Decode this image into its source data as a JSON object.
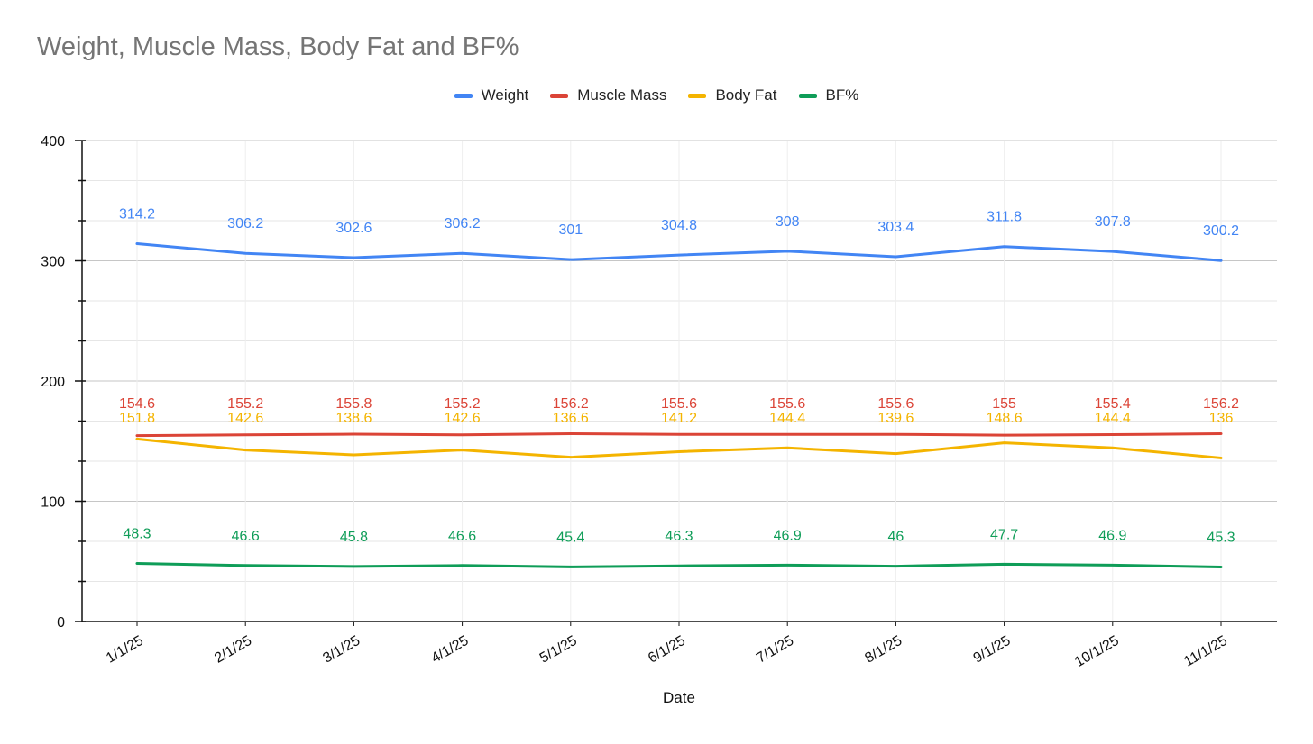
{
  "chart_data": {
    "type": "line",
    "title": "Weight, Muscle Mass, Body Fat and BF%",
    "xlabel": "Date",
    "ylabel": "",
    "ylim": [
      0,
      400
    ],
    "yticks": [
      "0",
      "100",
      "200",
      "300",
      "400"
    ],
    "grid": true,
    "legend_position": "top-center",
    "categories": [
      "1/1/25",
      "2/1/25",
      "3/1/25",
      "4/1/25",
      "5/1/25",
      "6/1/25",
      "7/1/25",
      "8/1/25",
      "9/1/25",
      "10/1/25",
      "11/1/25"
    ],
    "series": [
      {
        "name": "Weight",
        "color": "#4285f4",
        "values": [
          314.2,
          306.2,
          302.6,
          306.2,
          301,
          304.8,
          308,
          303.4,
          311.8,
          307.8,
          300.2
        ],
        "labels": [
          "314.2",
          "306.2",
          "302.6",
          "306.2",
          "301",
          "304.8",
          "308",
          "303.4",
          "311.8",
          "307.8",
          "300.2"
        ]
      },
      {
        "name": "Muscle Mass",
        "color": "#db4437",
        "values": [
          154.6,
          155.2,
          155.8,
          155.2,
          156.2,
          155.6,
          155.6,
          155.6,
          155,
          155.4,
          156.2
        ],
        "labels": [
          "154.6",
          "155.2",
          "155.8",
          "155.2",
          "156.2",
          "155.6",
          "155.6",
          "155.6",
          "155",
          "155.4",
          "156.2"
        ]
      },
      {
        "name": "Body Fat",
        "color": "#f4b400",
        "values": [
          151.8,
          142.6,
          138.6,
          142.6,
          136.6,
          141.2,
          144.4,
          139.6,
          148.6,
          144.4,
          136
        ],
        "labels": [
          "151.8",
          "142.6",
          "138.6",
          "142.6",
          "136.6",
          "141.2",
          "144.4",
          "139.6",
          "148.6",
          "144.4",
          "136"
        ]
      },
      {
        "name": "BF%",
        "color": "#0f9d58",
        "values": [
          48.3,
          46.6,
          45.8,
          46.6,
          45.4,
          46.3,
          46.9,
          46,
          47.7,
          46.9,
          45.3
        ],
        "labels": [
          "48.3",
          "46.6",
          "45.8",
          "46.6",
          "45.4",
          "46.3",
          "46.9",
          "46",
          "47.7",
          "46.9",
          "45.3"
        ]
      }
    ]
  }
}
